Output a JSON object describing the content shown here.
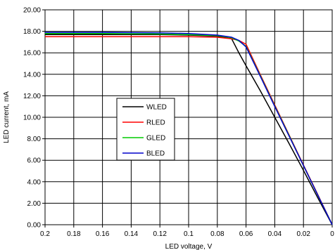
{
  "chart_data": {
    "type": "line",
    "title": "",
    "xlabel": "LED voltage, V",
    "ylabel": "LED current, mA",
    "xlim": [
      0.2,
      0
    ],
    "ylim": [
      0,
      20
    ],
    "x_reversed": true,
    "grid": true,
    "x_ticks": [
      "0.2",
      "0.18",
      "0.16",
      "0.14",
      "0.12",
      "0.1",
      "0.08",
      "0.06",
      "0.04",
      "0.02",
      "0"
    ],
    "y_ticks": [
      "0.00",
      "2.00",
      "4.00",
      "6.00",
      "8.00",
      "10.00",
      "12.00",
      "14.00",
      "16.00",
      "18.00",
      "20.00"
    ],
    "legend": {
      "position": "center-left",
      "entries": [
        "WLED",
        "RLED",
        "GLED",
        "BLED"
      ]
    },
    "series": [
      {
        "name": "WLED",
        "color": "#000000",
        "points": [
          [
            0.2,
            17.7
          ],
          [
            0.16,
            17.7
          ],
          [
            0.12,
            17.7
          ],
          [
            0.1,
            17.65
          ],
          [
            0.08,
            17.55
          ],
          [
            0.07,
            17.3
          ],
          [
            0.065,
            16.0
          ],
          [
            0.06,
            14.8
          ],
          [
            0.05,
            12.45
          ],
          [
            0.04,
            10.0
          ],
          [
            0.03,
            7.55
          ],
          [
            0.02,
            5.05
          ],
          [
            0.01,
            2.5
          ],
          [
            0.0,
            0.0
          ]
        ]
      },
      {
        "name": "RLED",
        "color": "#ff0000",
        "points": [
          [
            0.2,
            17.5
          ],
          [
            0.16,
            17.5
          ],
          [
            0.12,
            17.5
          ],
          [
            0.1,
            17.5
          ],
          [
            0.08,
            17.45
          ],
          [
            0.07,
            17.3
          ],
          [
            0.065,
            17.15
          ],
          [
            0.06,
            16.8
          ],
          [
            0.05,
            13.95
          ],
          [
            0.04,
            11.15
          ],
          [
            0.03,
            8.35
          ],
          [
            0.02,
            5.55
          ],
          [
            0.01,
            2.8
          ],
          [
            0.0,
            0.0
          ]
        ]
      },
      {
        "name": "GLED",
        "color": "#00cc00",
        "points": [
          [
            0.2,
            17.8
          ],
          [
            0.16,
            17.8
          ],
          [
            0.12,
            17.75
          ],
          [
            0.1,
            17.7
          ],
          [
            0.08,
            17.6
          ],
          [
            0.07,
            17.4
          ],
          [
            0.065,
            17.1
          ],
          [
            0.06,
            16.6
          ],
          [
            0.05,
            13.85
          ],
          [
            0.04,
            11.05
          ],
          [
            0.03,
            8.3
          ],
          [
            0.02,
            5.5
          ],
          [
            0.01,
            2.75
          ],
          [
            0.0,
            0.0
          ]
        ]
      },
      {
        "name": "BLED",
        "color": "#0000cc",
        "points": [
          [
            0.2,
            17.9
          ],
          [
            0.16,
            17.9
          ],
          [
            0.12,
            17.85
          ],
          [
            0.1,
            17.8
          ],
          [
            0.08,
            17.65
          ],
          [
            0.07,
            17.45
          ],
          [
            0.065,
            17.15
          ],
          [
            0.06,
            16.55
          ],
          [
            0.05,
            13.8
          ],
          [
            0.04,
            11.0
          ],
          [
            0.03,
            8.25
          ],
          [
            0.02,
            5.5
          ],
          [
            0.01,
            2.75
          ],
          [
            0.0,
            0.0
          ]
        ]
      }
    ]
  }
}
